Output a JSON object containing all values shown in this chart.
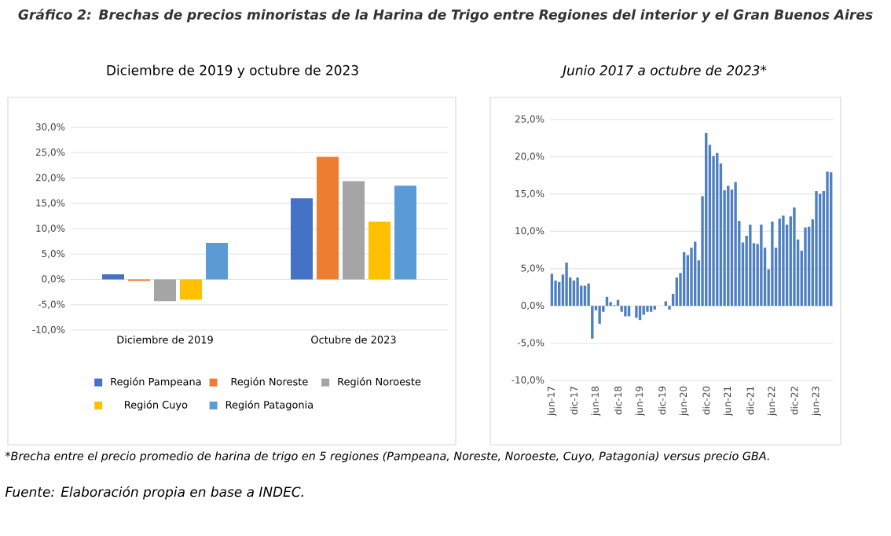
{
  "chart_data": [
    {
      "type": "bar",
      "title": "Gráfico 2: Brechas de precios minoristas de la Harina de Trigo entre Regiones del interior y el Gran Buenos Aires",
      "subtitle": "Diciembre de 2019 y octubre de 2023",
      "categories": [
        "Diciembre de 2019",
        "Octubre de 2023"
      ],
      "series": [
        {
          "name": "Región Pampeana",
          "color": "#4472c4",
          "values": [
            1.0,
            16.0
          ]
        },
        {
          "name": "Región Noreste",
          "color": "#ed7d31",
          "values": [
            -0.3,
            24.2
          ]
        },
        {
          "name": "Región Noroeste",
          "color": "#a5a5a5",
          "values": [
            -4.3,
            19.4
          ]
        },
        {
          "name": "Región Cuyo",
          "color": "#ffc000",
          "values": [
            -4.0,
            11.4
          ]
        },
        {
          "name": "Región Patagonia",
          "color": "#5b9bd5",
          "values": [
            7.2,
            18.5
          ]
        }
      ],
      "ylim": [
        -10,
        30
      ],
      "yticks": [
        {
          "value": -10,
          "label": "-10,0%"
        },
        {
          "value": -5,
          "label": "-5,0%"
        },
        {
          "value": 0,
          "label": "0,0%"
        },
        {
          "value": 5,
          "label": "5,0%"
        },
        {
          "value": 10,
          "label": "10,0%"
        },
        {
          "value": 15,
          "label": "15,0%"
        },
        {
          "value": 20,
          "label": "20,0%"
        },
        {
          "value": 25,
          "label": "25,0%"
        },
        {
          "value": 30,
          "label": "30,0%"
        }
      ],
      "grid": "y",
      "legend": "bottom",
      "annotations": [
        "*Brecha entre el precio promedio de harina de trigo en 5 regiones (Pampeana, Noreste, Noroeste, Cuyo, Patagonia) versus precio GBA.",
        "Fuente: Elaboración propia en base a INDEC."
      ]
    },
    {
      "type": "bar",
      "title": "Junio 2017 a octubre de 2023*",
      "categories": [
        "jun-17",
        null,
        null,
        null,
        null,
        null,
        "dic-17",
        null,
        null,
        null,
        null,
        null,
        "jun-18",
        null,
        null,
        null,
        null,
        null,
        "dic-18",
        null,
        null,
        null,
        null,
        null,
        "jun-19",
        null,
        null,
        null,
        null,
        null,
        "dic-19",
        null,
        null,
        null,
        null,
        null,
        "jun-20",
        null,
        null,
        null,
        null,
        null,
        "dic-20",
        null,
        null,
        null,
        null,
        null,
        "jun-21",
        null,
        null,
        null,
        null,
        null,
        "dic-21",
        null,
        null,
        null,
        null,
        null,
        "jun-22",
        null,
        null,
        null,
        null,
        null,
        "dic-22",
        null,
        null,
        null,
        null,
        null,
        "jun-23",
        null,
        null,
        null,
        null
      ],
      "series": [
        {
          "color": "#4f81c2",
          "values": [
            4.3,
            3.4,
            3.2,
            4.2,
            5.8,
            3.8,
            3.4,
            3.8,
            2.7,
            2.7,
            3.0,
            -4.4,
            -0.6,
            -2.4,
            -0.8,
            1.2,
            0.5,
            0.1,
            0.8,
            -0.8,
            -1.4,
            -1.4,
            0.0,
            -1.6,
            -1.9,
            -1.2,
            -0.8,
            -0.8,
            -0.5,
            0.0,
            0.0,
            0.6,
            -0.5,
            1.6,
            3.8,
            4.4,
            7.2,
            6.8,
            7.8,
            8.6,
            6.1,
            14.7,
            23.2,
            21.6,
            20.1,
            20.5,
            19.1,
            15.5,
            16.1,
            15.6,
            16.6,
            11.4,
            8.5,
            9.4,
            10.9,
            8.4,
            8.3,
            10.9,
            7.8,
            4.9,
            11.3,
            7.8,
            11.7,
            12.1,
            10.9,
            12.0,
            13.2,
            8.9,
            7.4,
            10.5,
            10.6,
            11.6,
            15.4,
            15.0,
            15.4,
            18.0,
            17.9
          ]
        }
      ],
      "ylim": [
        -10,
        25
      ],
      "yticks": [
        {
          "value": -10,
          "label": "-10,0%"
        },
        {
          "value": -5,
          "label": "-5,0%"
        },
        {
          "value": 0,
          "label": "0,0%"
        },
        {
          "value": 5,
          "label": "5,0%"
        },
        {
          "value": 10,
          "label": "10,0%"
        },
        {
          "value": 15,
          "label": "15,0%"
        },
        {
          "value": 20,
          "label": "20,0%"
        },
        {
          "value": 25,
          "label": "25,0%"
        }
      ],
      "grid": "y"
    }
  ]
}
